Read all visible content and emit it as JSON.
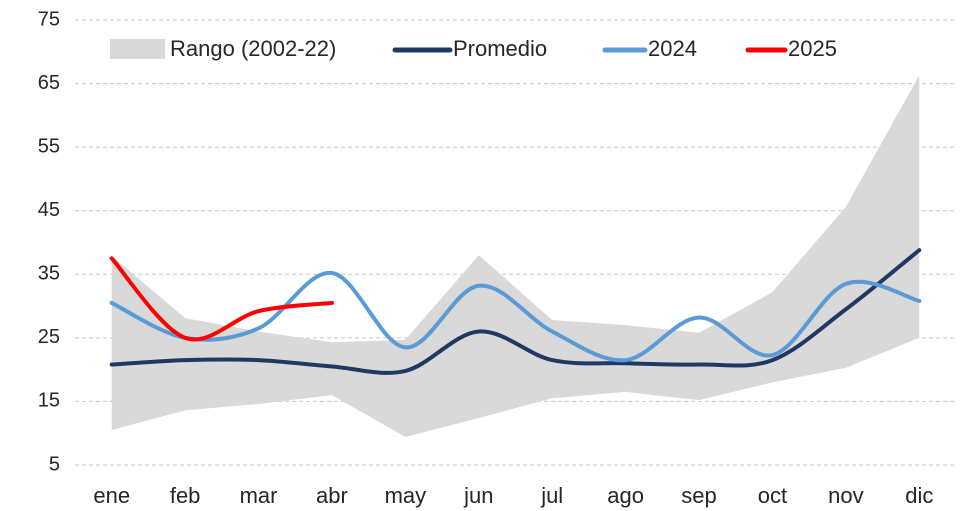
{
  "chart_data": {
    "type": "line",
    "categories": [
      "ene",
      "feb",
      "mar",
      "abr",
      "may",
      "jun",
      "jul",
      "ago",
      "sep",
      "oct",
      "nov",
      "dic"
    ],
    "range": {
      "name": "Rango (2002-22)",
      "color": "#d9d9d9",
      "lower": [
        10.5,
        13.6,
        14.6,
        16,
        9.4,
        12.4,
        15.5,
        16.5,
        15.2,
        18,
        20.3,
        25
      ],
      "upper": [
        37.9,
        28.1,
        26,
        24.3,
        24.7,
        38,
        27.8,
        27,
        25.8,
        32.2,
        45.6,
        66.3
      ]
    },
    "series": [
      {
        "name": "Promedio",
        "color": "#1f3864",
        "values": [
          20.8,
          21.5,
          21.5,
          20.5,
          19.8,
          26,
          21.5,
          21,
          20.8,
          21.5,
          29.5,
          38.8
        ]
      },
      {
        "name": "2024",
        "color": "#5b9bd5",
        "values": [
          30.5,
          25,
          26.5,
          35.2,
          23.5,
          33.2,
          26,
          21.5,
          28.2,
          22.3,
          33.5,
          30.8
        ]
      },
      {
        "name": "2025",
        "color": "#ff0000",
        "values": [
          37.5,
          25,
          29.2,
          30.5,
          null,
          null,
          null,
          null,
          null,
          null,
          null,
          null
        ]
      }
    ],
    "ylim": [
      5,
      75
    ],
    "yticks": [
      5,
      15,
      25,
      35,
      45,
      55,
      65,
      75
    ],
    "grid": true
  }
}
